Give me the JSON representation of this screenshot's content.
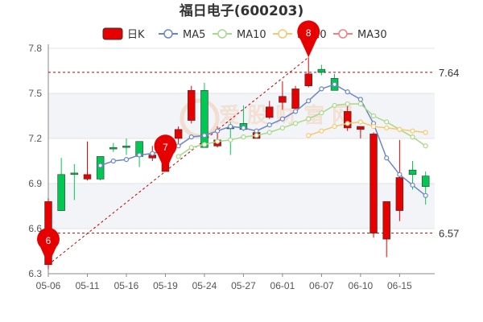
{
  "chart_data": {
    "type": "candlestick",
    "title": "福日电子(600203)",
    "legend": [
      {
        "label": "日K",
        "color": "#e60000",
        "kind": "candle"
      },
      {
        "label": "MA5",
        "color": "#6b86c8",
        "kind": "line"
      },
      {
        "label": "MA10",
        "color": "#a8d88a",
        "kind": "line"
      },
      {
        "label": "MA20",
        "color": "#f5c96a",
        "kind": "line"
      },
      {
        "label": "MA30",
        "color": "#f08080",
        "kind": "line"
      }
    ],
    "ylim": [
      6.3,
      7.8
    ],
    "y_ticks": [
      6.3,
      6.6,
      6.9,
      7.2,
      7.5,
      7.8
    ],
    "x_tick_labels": [
      "05-06",
      "05-11",
      "05-16",
      "05-19",
      "05-24",
      "05-27",
      "06-01",
      "06-07",
      "06-10",
      "06-15"
    ],
    "x_tick_index": [
      0,
      3,
      6,
      9,
      12,
      15,
      18,
      21,
      24,
      27
    ],
    "candles": [
      {
        "o": 6.78,
        "c": 6.36,
        "h": 6.8,
        "l": 6.33
      },
      {
        "o": 6.72,
        "c": 6.96,
        "h": 7.07,
        "l": 6.72
      },
      {
        "o": 6.96,
        "c": 6.97,
        "h": 7.03,
        "l": 6.79
      },
      {
        "o": 6.96,
        "c": 6.93,
        "h": 7.18,
        "l": 6.92
      },
      {
        "o": 6.93,
        "c": 7.08,
        "h": 7.08,
        "l": 6.92
      },
      {
        "o": 7.13,
        "c": 7.14,
        "h": 7.17,
        "l": 7.11
      },
      {
        "o": 7.14,
        "c": 7.15,
        "h": 7.2,
        "l": 7.09
      },
      {
        "o": 7.08,
        "c": 7.18,
        "h": 7.18,
        "l": 7.01
      },
      {
        "o": 7.09,
        "c": 7.07,
        "h": 7.15,
        "l": 7.05
      },
      {
        "o": 7.11,
        "c": 6.98,
        "h": 7.17,
        "l": 6.98
      },
      {
        "o": 7.26,
        "c": 7.2,
        "h": 7.28,
        "l": 7.16
      },
      {
        "o": 7.52,
        "c": 7.32,
        "h": 7.55,
        "l": 7.3
      },
      {
        "o": 7.14,
        "c": 7.52,
        "h": 7.57,
        "l": 7.14
      },
      {
        "o": 7.19,
        "c": 7.15,
        "h": 7.28,
        "l": 7.14
      },
      {
        "o": 7.27,
        "c": 7.27,
        "h": 7.31,
        "l": 7.09
      },
      {
        "o": 7.26,
        "c": 7.3,
        "h": 7.42,
        "l": 7.25
      },
      {
        "o": 7.24,
        "c": 7.2,
        "h": 7.24,
        "l": 7.2
      },
      {
        "o": 7.41,
        "c": 7.34,
        "h": 7.45,
        "l": 7.33
      },
      {
        "o": 7.48,
        "c": 7.44,
        "h": 7.58,
        "l": 7.39
      },
      {
        "o": 7.53,
        "c": 7.4,
        "h": 7.55,
        "l": 7.4
      },
      {
        "o": 7.63,
        "c": 7.55,
        "h": 7.74,
        "l": 7.54
      },
      {
        "o": 7.64,
        "c": 7.66,
        "h": 7.69,
        "l": 7.62
      },
      {
        "o": 7.52,
        "c": 7.6,
        "h": 7.63,
        "l": 7.52
      },
      {
        "o": 7.38,
        "c": 7.27,
        "h": 7.42,
        "l": 7.25
      },
      {
        "o": 7.28,
        "c": 7.26,
        "h": 7.28,
        "l": 7.2
      },
      {
        "o": 7.23,
        "c": 6.57,
        "h": 7.24,
        "l": 6.54
      },
      {
        "o": 6.78,
        "c": 6.53,
        "h": 6.78,
        "l": 6.41
      },
      {
        "o": 6.94,
        "c": 6.72,
        "h": 7.19,
        "l": 6.65
      },
      {
        "o": 6.96,
        "c": 6.99,
        "h": 7.05,
        "l": 6.86
      },
      {
        "o": 6.88,
        "c": 6.95,
        "h": 6.98,
        "l": 6.76
      }
    ],
    "ma5": [
      null,
      null,
      null,
      null,
      7.02,
      7.05,
      7.06,
      7.09,
      7.1,
      7.12,
      7.15,
      7.21,
      7.22,
      7.25,
      7.28,
      7.27,
      7.25,
      7.29,
      7.33,
      7.38,
      7.45,
      7.53,
      7.56,
      7.51,
      7.46,
      7.3,
      7.07,
      6.96,
      6.89,
      6.82
    ],
    "ma10": [
      null,
      null,
      null,
      null,
      null,
      null,
      null,
      null,
      null,
      null,
      7.08,
      7.14,
      7.16,
      7.18,
      7.19,
      7.21,
      7.22,
      7.24,
      7.27,
      7.3,
      7.33,
      7.37,
      7.42,
      7.43,
      7.43,
      7.35,
      7.31,
      7.26,
      7.21,
      7.15
    ],
    "ma20": [
      null,
      null,
      null,
      null,
      null,
      null,
      null,
      null,
      null,
      null,
      null,
      null,
      null,
      null,
      null,
      null,
      null,
      null,
      null,
      null,
      7.22,
      7.25,
      7.28,
      7.3,
      7.31,
      7.28,
      7.27,
      7.26,
      7.25,
      7.24
    ],
    "ref_lines": [
      {
        "value": 7.64,
        "label": "7.64"
      },
      {
        "value": 6.57,
        "label": "6.57"
      }
    ],
    "markers": [
      {
        "label": "6",
        "index": 0,
        "price": 6.36
      },
      {
        "label": "7",
        "index": 9,
        "price": 6.98
      },
      {
        "label": "8",
        "index": 20,
        "price": 7.74
      }
    ],
    "watermark": "爱 股 财 富 网"
  }
}
